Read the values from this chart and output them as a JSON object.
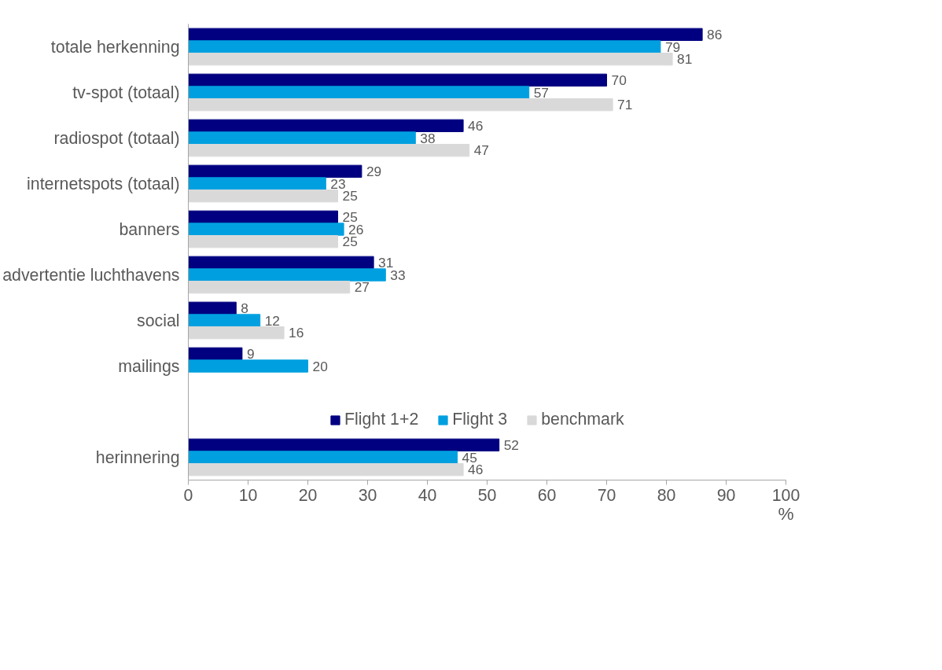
{
  "chart_data": {
    "type": "bar",
    "orientation": "horizontal",
    "categories": [
      "totale herkenning",
      "tv-spot (totaal)",
      "radiospot (totaal)",
      "internetspots (totaal)",
      "banners",
      "advertentie luchthavens",
      "social",
      "mailings",
      null,
      "herinnering"
    ],
    "series": [
      {
        "name": "Flight 1+2",
        "color": "#000080",
        "values": [
          86,
          70,
          46,
          29,
          25,
          31,
          8,
          9,
          null,
          52
        ]
      },
      {
        "name": "Flight 3",
        "color": "#00a0e0",
        "values": [
          79,
          57,
          38,
          23,
          26,
          33,
          12,
          20,
          null,
          45
        ]
      },
      {
        "name": "benchmark",
        "color": "#d9d9d9",
        "values": [
          81,
          71,
          47,
          25,
          25,
          27,
          16,
          null,
          null,
          46
        ]
      }
    ],
    "xlim": [
      0,
      100
    ],
    "xticks": [
      0,
      10,
      20,
      30,
      40,
      50,
      60,
      70,
      80,
      90,
      100
    ],
    "xlabel": "%",
    "data_labels": true,
    "legend": "bottom",
    "grid": false
  }
}
